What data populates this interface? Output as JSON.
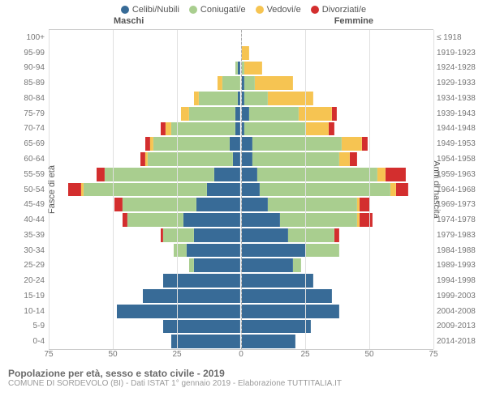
{
  "chart": {
    "type": "population-pyramid",
    "background_color": "#ffffff",
    "grid_color": "#e0e0e0",
    "centerline_color": "#aaaaaa",
    "label_color": "#777777",
    "axis_fontsize": 10,
    "max_value": 75,
    "xticks": [
      75,
      50,
      25,
      0,
      25,
      50,
      75
    ],
    "gender_left": "Maschi",
    "gender_right": "Femmine",
    "y_title_left": "Fasce di età",
    "y_title_right": "Anni di nascita",
    "legend": [
      {
        "label": "Celibi/Nubili",
        "color": "#386b97"
      },
      {
        "label": "Coniugati/e",
        "color": "#a9ce8f"
      },
      {
        "label": "Vedovi/e",
        "color": "#f6c452"
      },
      {
        "label": "Divorziati/e",
        "color": "#d32e2e"
      }
    ],
    "rows": [
      {
        "age": "100+",
        "birth": "≤ 1918",
        "m": [
          0,
          0,
          0,
          0
        ],
        "f": [
          0,
          0,
          0,
          0
        ]
      },
      {
        "age": "95-99",
        "birth": "1919-1923",
        "m": [
          0,
          0,
          0,
          0
        ],
        "f": [
          0,
          0,
          3,
          0
        ]
      },
      {
        "age": "90-94",
        "birth": "1924-1928",
        "m": [
          1,
          1,
          0,
          0
        ],
        "f": [
          0,
          1,
          7,
          0
        ]
      },
      {
        "age": "85-89",
        "birth": "1929-1933",
        "m": [
          0,
          7,
          2,
          0
        ],
        "f": [
          1,
          4,
          15,
          0
        ]
      },
      {
        "age": "80-84",
        "birth": "1934-1938",
        "m": [
          1,
          15,
          2,
          0
        ],
        "f": [
          1,
          9,
          18,
          0
        ]
      },
      {
        "age": "75-79",
        "birth": "1939-1943",
        "m": [
          2,
          18,
          3,
          0
        ],
        "f": [
          3,
          19,
          13,
          2
        ]
      },
      {
        "age": "70-74",
        "birth": "1944-1948",
        "m": [
          2,
          25,
          2,
          2
        ],
        "f": [
          1,
          24,
          9,
          2
        ]
      },
      {
        "age": "65-69",
        "birth": "1949-1953",
        "m": [
          4,
          30,
          1,
          2
        ],
        "f": [
          4,
          35,
          8,
          2
        ]
      },
      {
        "age": "60-64",
        "birth": "1954-1958",
        "m": [
          3,
          33,
          1,
          2
        ],
        "f": [
          4,
          34,
          4,
          3
        ]
      },
      {
        "age": "55-59",
        "birth": "1959-1963",
        "m": [
          10,
          43,
          0,
          3
        ],
        "f": [
          6,
          47,
          3,
          8
        ]
      },
      {
        "age": "50-54",
        "birth": "1964-1968",
        "m": [
          13,
          48,
          1,
          5
        ],
        "f": [
          7,
          51,
          2,
          5
        ]
      },
      {
        "age": "45-49",
        "birth": "1969-1973",
        "m": [
          17,
          29,
          0,
          3
        ],
        "f": [
          10,
          35,
          1,
          4
        ]
      },
      {
        "age": "40-44",
        "birth": "1974-1978",
        "m": [
          22,
          22,
          0,
          2
        ],
        "f": [
          15,
          30,
          1,
          5
        ]
      },
      {
        "age": "35-39",
        "birth": "1979-1983",
        "m": [
          18,
          12,
          0,
          1
        ],
        "f": [
          18,
          18,
          0,
          2
        ]
      },
      {
        "age": "30-34",
        "birth": "1984-1988",
        "m": [
          21,
          5,
          0,
          0
        ],
        "f": [
          25,
          13,
          0,
          0
        ]
      },
      {
        "age": "25-29",
        "birth": "1989-1993",
        "m": [
          18,
          2,
          0,
          0
        ],
        "f": [
          20,
          3,
          0,
          0
        ]
      },
      {
        "age": "20-24",
        "birth": "1994-1998",
        "m": [
          30,
          0,
          0,
          0
        ],
        "f": [
          28,
          0,
          0,
          0
        ]
      },
      {
        "age": "15-19",
        "birth": "1999-2003",
        "m": [
          38,
          0,
          0,
          0
        ],
        "f": [
          35,
          0,
          0,
          0
        ]
      },
      {
        "age": "10-14",
        "birth": "2004-2008",
        "m": [
          48,
          0,
          0,
          0
        ],
        "f": [
          38,
          0,
          0,
          0
        ]
      },
      {
        "age": "5-9",
        "birth": "2009-2013",
        "m": [
          30,
          0,
          0,
          0
        ],
        "f": [
          27,
          0,
          0,
          0
        ]
      },
      {
        "age": "0-4",
        "birth": "2014-2018",
        "m": [
          27,
          0,
          0,
          0
        ],
        "f": [
          21,
          0,
          0,
          0
        ]
      }
    ]
  },
  "footer": {
    "title": "Popolazione per età, sesso e stato civile - 2019",
    "subtitle": "COMUNE DI SORDEVOLO (BI) - Dati ISTAT 1° gennaio 2019 - Elaborazione TUTTITALIA.IT"
  }
}
